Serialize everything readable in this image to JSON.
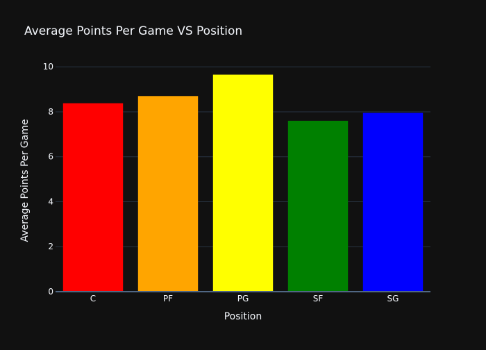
{
  "chart_data": {
    "type": "bar",
    "title": "Average Points Per Game VS Position",
    "xlabel": "Position",
    "ylabel": "Average Points Per Game",
    "categories": [
      "C",
      "PF",
      "PG",
      "SF",
      "SG"
    ],
    "values": [
      8.38,
      8.7,
      9.65,
      7.6,
      7.95
    ],
    "colors": [
      "#ff0000",
      "#ffa500",
      "#ffff00",
      "#008000",
      "#0000ff"
    ],
    "ylim": [
      0,
      10.5
    ],
    "yticks": [
      0,
      2,
      4,
      6,
      8,
      10
    ],
    "grid": true,
    "legend": "none"
  },
  "theme": {
    "background": "#111111",
    "text_color": "#f2f5fa",
    "grid_color": "#283442",
    "axis_line_color": "#506784"
  }
}
